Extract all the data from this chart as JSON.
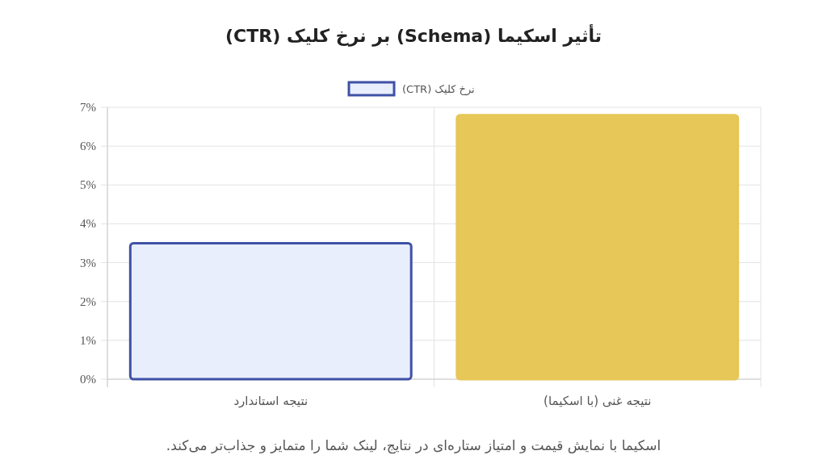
{
  "chart_data": {
    "type": "bar",
    "title": "تأثیر اسکیما (Schema) بر نرخ کلیک (CTR)",
    "categories": [
      "نتیجه استاندارد",
      "نتیجه غنی (با اسکیما)"
    ],
    "series": [
      {
        "name": "نرخ کلیک (CTR)",
        "colors": [
          "#e8eefc",
          "#e6c757"
        ],
        "values": [
          3.5,
          6.8
        ]
      }
    ],
    "ylim": [
      0,
      7
    ],
    "yticks": [
      {
        "value": 0,
        "label": "0%"
      },
      {
        "value": 1,
        "label": "1%"
      },
      {
        "value": 2,
        "label": "2%"
      },
      {
        "value": 3,
        "label": "3%"
      },
      {
        "value": 4,
        "label": "4%"
      },
      {
        "value": 5,
        "label": "5%"
      },
      {
        "value": 6,
        "label": "6%"
      },
      {
        "value": 7,
        "label": "7%"
      }
    ],
    "grid": true,
    "legend": "top",
    "annotations": [
      "اسکیما با نمایش قیمت و امتیاز ستاره‌ای در نتایج، لینک شما را متمایز و جذاب‌تر می‌کند."
    ]
  }
}
